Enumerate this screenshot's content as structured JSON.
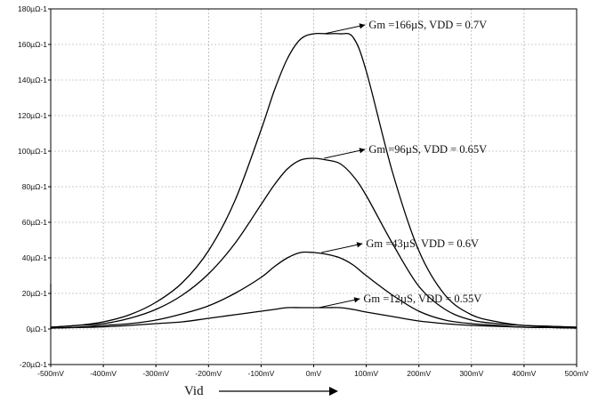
{
  "chart_data": {
    "type": "line",
    "xlabel": "Vid",
    "ylabel": "",
    "title": "",
    "xlim": [
      -500,
      500
    ],
    "ylim": [
      -20,
      180
    ],
    "grid": true,
    "x_ticks": [
      {
        "value": -500,
        "label": "-500mV"
      },
      {
        "value": -400,
        "label": "-400mV"
      },
      {
        "value": -300,
        "label": "-300mV"
      },
      {
        "value": -200,
        "label": "-200mV"
      },
      {
        "value": -100,
        "label": "-100mV"
      },
      {
        "value": 0,
        "label": "0mV"
      },
      {
        "value": 100,
        "label": "100mV"
      },
      {
        "value": 200,
        "label": "200mV"
      },
      {
        "value": 300,
        "label": "300mV"
      },
      {
        "value": 400,
        "label": "400mV"
      },
      {
        "value": 500,
        "label": "500mV"
      }
    ],
    "y_ticks": [
      {
        "value": -20,
        "label": "-20µΩ-1"
      },
      {
        "value": 0,
        "label": "0µΩ-1"
      },
      {
        "value": 20,
        "label": "20µΩ-1"
      },
      {
        "value": 40,
        "label": "40µΩ-1"
      },
      {
        "value": 60,
        "label": "60µΩ-1"
      },
      {
        "value": 80,
        "label": "80µΩ-1"
      },
      {
        "value": 100,
        "label": "100µΩ-1"
      },
      {
        "value": 120,
        "label": "120µΩ-1"
      },
      {
        "value": 140,
        "label": "140µΩ-1"
      },
      {
        "value": 160,
        "label": "160µΩ-1"
      },
      {
        "value": 180,
        "label": "180µΩ-1"
      }
    ],
    "x": [
      -500,
      -450,
      -400,
      -350,
      -300,
      -250,
      -200,
      -150,
      -100,
      -75,
      -50,
      -25,
      0,
      25,
      50,
      75,
      100,
      150,
      200,
      250,
      300,
      350,
      400,
      450,
      500
    ],
    "series": [
      {
        "values": [
          1,
          2,
          4,
          8,
          15,
          26,
          44,
          72,
          112,
          134,
          152,
          163,
          166,
          166,
          166,
          164,
          145,
          88,
          44,
          19,
          8,
          4,
          2,
          1.5,
          1
        ],
        "annotation": "Gm =166µS, VDD = 0.7V",
        "annotation_at": {
          "x": 20,
          "y": 166
        }
      },
      {
        "values": [
          1,
          2,
          3,
          6,
          11,
          19,
          31,
          48,
          70,
          81,
          90,
          95,
          96,
          95,
          93,
          86,
          75,
          48,
          24,
          11,
          5,
          3,
          2,
          1.5,
          1
        ],
        "annotation": "Gm =96µS, VDD = 0.65V",
        "annotation_at": {
          "x": 20,
          "y": 96
        }
      },
      {
        "values": [
          0.5,
          1,
          2,
          3,
          5,
          8.5,
          13,
          20,
          29,
          35,
          40,
          43,
          43,
          42,
          40,
          36,
          30,
          19,
          10,
          5,
          3,
          2,
          1,
          0.8,
          0.5
        ],
        "annotation": "Gm =43µS, VDD = 0.6V",
        "annotation_at": {
          "x": 15,
          "y": 43
        }
      },
      {
        "values": [
          0.5,
          0.8,
          1.2,
          2,
          3,
          4,
          6,
          8,
          10,
          11,
          12,
          12,
          12,
          12,
          12,
          11,
          9.5,
          7,
          4.5,
          3,
          2,
          1.5,
          1,
          0.8,
          0.5
        ],
        "annotation": "Gm =12µS, VDD = 0.55V",
        "annotation_at": {
          "x": 10,
          "y": 12
        }
      }
    ]
  }
}
